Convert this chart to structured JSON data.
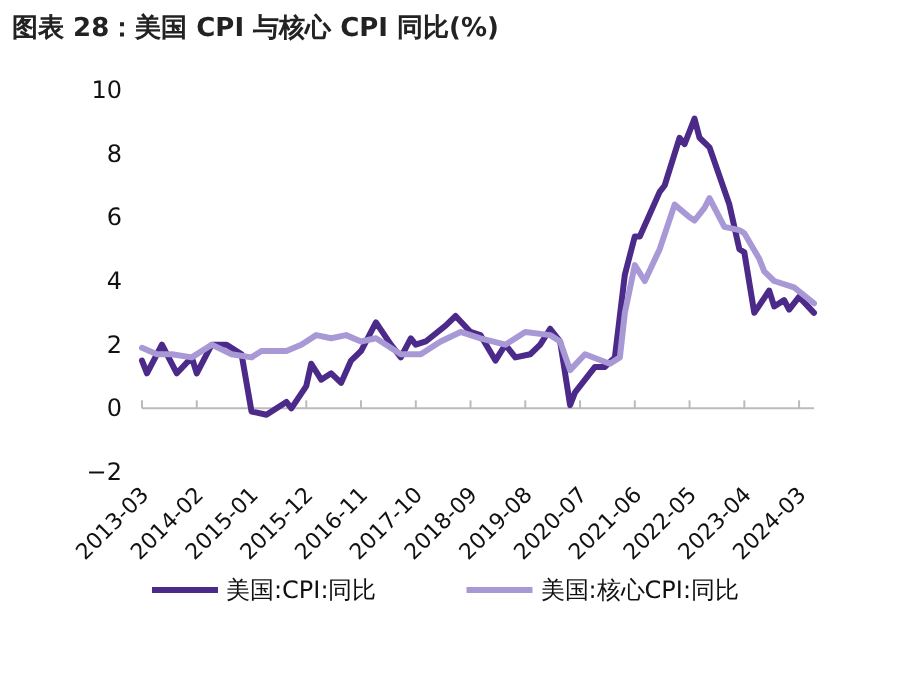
{
  "chart_data": {
    "type": "line",
    "title": "图表 28：美国 CPI 与核心 CPI 同比(%)",
    "xlim": [
      "2013-03",
      "2024-06"
    ],
    "xticks": [
      "2013-03",
      "2014-02",
      "2015-01",
      "2015-12",
      "2016-11",
      "2017-10",
      "2018-09",
      "2019-08",
      "2020-07",
      "2021-06",
      "2022-05",
      "2023-04",
      "2024-03"
    ],
    "ylim": [
      -2,
      10
    ],
    "yticks": [
      -2,
      0,
      2,
      4,
      6,
      8,
      10
    ],
    "legend": "bottom",
    "marker": "none",
    "line_style": "solid",
    "series": [
      {
        "name": "美国:CPI:同比",
        "color": "#4b2a8a",
        "x": [
          "2013-03",
          "2013-04",
          "2013-07",
          "2013-10",
          "2014-01",
          "2014-02",
          "2014-05",
          "2014-08",
          "2014-11",
          "2015-01",
          "2015-04",
          "2015-08",
          "2015-09",
          "2015-12",
          "2016-01",
          "2016-03",
          "2016-05",
          "2016-07",
          "2016-09",
          "2016-11",
          "2017-02",
          "2017-05",
          "2017-07",
          "2017-09",
          "2017-10",
          "2017-12",
          "2018-04",
          "2018-06",
          "2018-09",
          "2018-11",
          "2019-02",
          "2019-04",
          "2019-06",
          "2019-09",
          "2019-11",
          "2020-01",
          "2020-03",
          "2020-05",
          "2020-06",
          "2020-10",
          "2020-12",
          "2021-02",
          "2021-04",
          "2021-06",
          "2021-07",
          "2021-11",
          "2021-12",
          "2022-03",
          "2022-04",
          "2022-06",
          "2022-07",
          "2022-09",
          "2023-01",
          "2023-03",
          "2023-04",
          "2023-06",
          "2023-09",
          "2023-10",
          "2023-12",
          "2024-01",
          "2024-03",
          "2024-06"
        ],
        "values": [
          1.5,
          1.1,
          2.0,
          1.1,
          1.6,
          1.1,
          2.0,
          2.0,
          1.7,
          -0.1,
          -0.2,
          0.2,
          0.0,
          0.7,
          1.4,
          0.9,
          1.1,
          0.8,
          1.5,
          1.8,
          2.7,
          2.0,
          1.6,
          2.2,
          2.0,
          2.1,
          2.6,
          2.9,
          2.4,
          2.3,
          1.5,
          2.0,
          1.6,
          1.7,
          2.0,
          2.5,
          2.1,
          0.1,
          0.5,
          1.3,
          1.3,
          1.6,
          4.2,
          5.4,
          5.4,
          6.8,
          7.0,
          8.5,
          8.3,
          9.1,
          8.5,
          8.2,
          6.4,
          5.0,
          4.9,
          3.0,
          3.7,
          3.2,
          3.4,
          3.1,
          3.5,
          3.0
        ]
      },
      {
        "name": "美国:核心CPI:同比",
        "color": "#a899d6",
        "x": [
          "2013-03",
          "2013-06",
          "2013-09",
          "2014-01",
          "2014-05",
          "2014-09",
          "2015-01",
          "2015-03",
          "2015-08",
          "2015-11",
          "2016-02",
          "2016-05",
          "2016-08",
          "2016-11",
          "2017-02",
          "2017-07",
          "2017-11",
          "2018-03",
          "2018-07",
          "2018-11",
          "2019-04",
          "2019-08",
          "2020-01",
          "2020-03",
          "2020-05",
          "2020-08",
          "2021-01",
          "2021-03",
          "2021-04",
          "2021-06",
          "2021-08",
          "2021-11",
          "2022-02",
          "2022-05",
          "2022-06",
          "2022-08",
          "2022-09",
          "2022-12",
          "2023-03",
          "2023-04",
          "2023-07",
          "2023-08",
          "2023-10",
          "2024-02",
          "2024-06"
        ],
        "values": [
          1.9,
          1.7,
          1.7,
          1.6,
          2.0,
          1.7,
          1.6,
          1.8,
          1.8,
          2.0,
          2.3,
          2.2,
          2.3,
          2.1,
          2.2,
          1.7,
          1.7,
          2.1,
          2.4,
          2.2,
          2.0,
          2.4,
          2.3,
          2.1,
          1.2,
          1.7,
          1.4,
          1.6,
          3.0,
          4.5,
          4.0,
          5.0,
          6.4,
          6.0,
          5.9,
          6.3,
          6.6,
          5.7,
          5.6,
          5.5,
          4.7,
          4.3,
          4.0,
          3.8,
          3.3
        ]
      }
    ]
  }
}
